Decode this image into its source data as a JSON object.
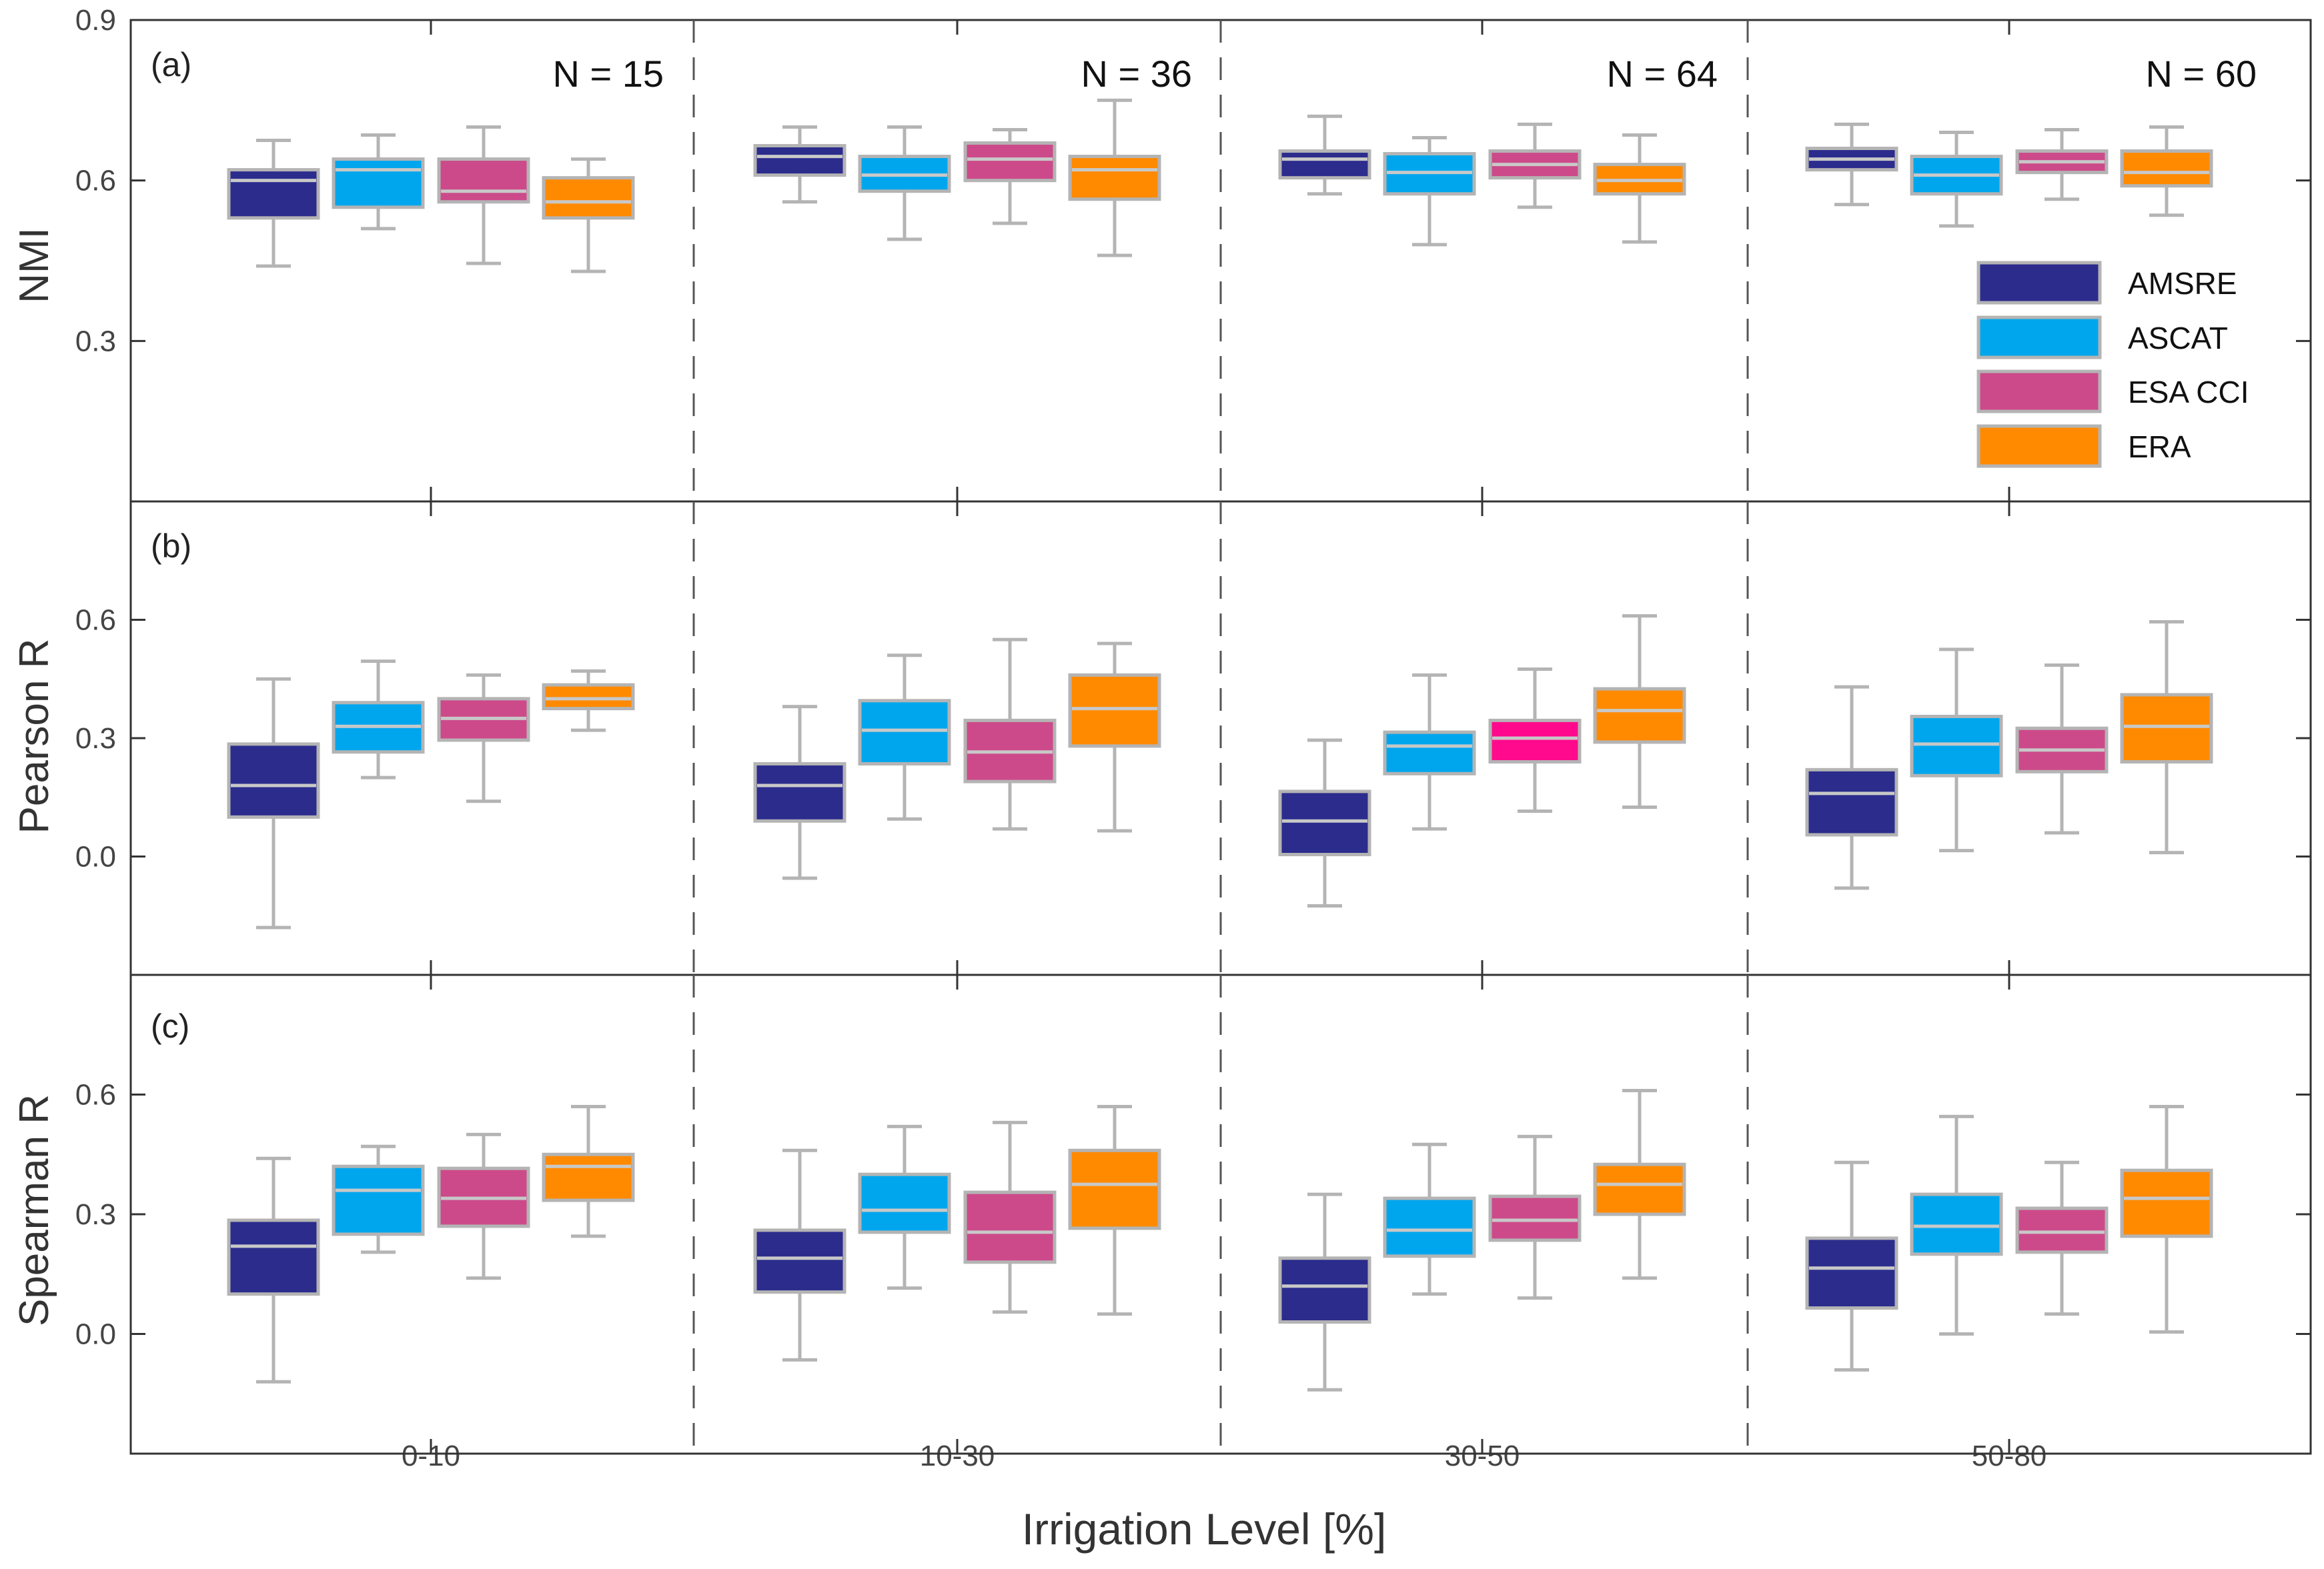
{
  "chart_data": {
    "type": "boxplot",
    "xlabel": "Irrigation Level [%]",
    "categories": [
      "0-10",
      "10-30",
      "30-50",
      "50-80"
    ],
    "group_counts": [
      "N = 15",
      "N = 36",
      "N = 64",
      "N = 60"
    ],
    "series": [
      {
        "name": "AMSRE",
        "color": "#2b2c8c"
      },
      {
        "name": "ASCAT",
        "color": "#00a6ed"
      },
      {
        "name": "ESA CCI",
        "color": "#cc4a8a"
      },
      {
        "name": "ERA",
        "color": "#ff8a00"
      }
    ],
    "whisker_color": "#b4b4b4",
    "legend_location": "right, inside panel (a)",
    "panels": [
      {
        "tag": "(a)",
        "ylabel": "NMI",
        "ylim": [
          0.0,
          0.9
        ],
        "yticks": [
          "0.3",
          "0.6",
          "0.9"
        ],
        "boxes": [
          [
            {
              "min": 0.44,
              "q1": 0.53,
              "median": 0.6,
              "q3": 0.62,
              "max": 0.675
            },
            {
              "min": 0.51,
              "q1": 0.55,
              "median": 0.62,
              "q3": 0.64,
              "max": 0.685
            },
            {
              "min": 0.445,
              "q1": 0.56,
              "median": 0.58,
              "q3": 0.64,
              "max": 0.7
            },
            {
              "min": 0.43,
              "q1": 0.53,
              "median": 0.56,
              "q3": 0.605,
              "max": 0.64
            }
          ],
          [
            {
              "min": 0.56,
              "q1": 0.61,
              "median": 0.645,
              "q3": 0.665,
              "max": 0.7
            },
            {
              "min": 0.49,
              "q1": 0.58,
              "median": 0.61,
              "q3": 0.645,
              "max": 0.7
            },
            {
              "min": 0.52,
              "q1": 0.6,
              "median": 0.64,
              "q3": 0.67,
              "max": 0.695
            },
            {
              "min": 0.46,
              "q1": 0.565,
              "median": 0.62,
              "q3": 0.645,
              "max": 0.75
            }
          ],
          [
            {
              "min": 0.575,
              "q1": 0.605,
              "median": 0.64,
              "q3": 0.655,
              "max": 0.72
            },
            {
              "min": 0.48,
              "q1": 0.575,
              "median": 0.615,
              "q3": 0.65,
              "max": 0.68
            },
            {
              "min": 0.55,
              "q1": 0.605,
              "median": 0.63,
              "q3": 0.655,
              "max": 0.705
            },
            {
              "min": 0.485,
              "q1": 0.575,
              "median": 0.6,
              "q3": 0.63,
              "max": 0.685
            }
          ],
          [
            {
              "min": 0.555,
              "q1": 0.62,
              "median": 0.64,
              "q3": 0.66,
              "max": 0.705
            },
            {
              "min": 0.515,
              "q1": 0.575,
              "median": 0.61,
              "q3": 0.645,
              "max": 0.69
            },
            {
              "min": 0.565,
              "q1": 0.615,
              "median": 0.635,
              "q3": 0.655,
              "max": 0.695
            },
            {
              "min": 0.535,
              "q1": 0.59,
              "median": 0.615,
              "q3": 0.655,
              "max": 0.7
            }
          ]
        ]
      },
      {
        "tag": "(b)",
        "ylabel": "Pearson R",
        "ylim": [
          -0.3,
          0.9
        ],
        "yticks": [
          "0.0",
          "0.3",
          "0.6"
        ],
        "boxes": [
          [
            {
              "min": -0.18,
              "q1": 0.1,
              "median": 0.18,
              "q3": 0.285,
              "max": 0.45
            },
            {
              "min": 0.2,
              "q1": 0.265,
              "median": 0.33,
              "q3": 0.39,
              "max": 0.495
            },
            {
              "min": 0.14,
              "q1": 0.295,
              "median": 0.35,
              "q3": 0.4,
              "max": 0.46
            },
            {
              "min": 0.32,
              "q1": 0.375,
              "median": 0.4,
              "q3": 0.435,
              "max": 0.47
            }
          ],
          [
            {
              "min": -0.055,
              "q1": 0.09,
              "median": 0.18,
              "q3": 0.235,
              "max": 0.38
            },
            {
              "min": 0.095,
              "q1": 0.235,
              "median": 0.32,
              "q3": 0.395,
              "max": 0.51
            },
            {
              "min": 0.07,
              "q1": 0.19,
              "median": 0.265,
              "q3": 0.345,
              "max": 0.55
            },
            {
              "min": 0.065,
              "q1": 0.28,
              "median": 0.375,
              "q3": 0.46,
              "max": 0.54
            }
          ],
          [
            {
              "min": -0.125,
              "q1": 0.005,
              "median": 0.09,
              "q3": 0.165,
              "max": 0.295
            },
            {
              "min": 0.07,
              "q1": 0.21,
              "median": 0.28,
              "q3": 0.315,
              "max": 0.46
            },
            {
              "min": 0.115,
              "q1": 0.24,
              "median": 0.3,
              "q3": 0.345,
              "max": 0.475
            },
            {
              "min": 0.125,
              "q1": 0.29,
              "median": 0.37,
              "q3": 0.425,
              "max": 0.61
            }
          ],
          [
            {
              "min": -0.08,
              "q1": 0.055,
              "median": 0.16,
              "q3": 0.22,
              "max": 0.43
            },
            {
              "min": 0.015,
              "q1": 0.205,
              "median": 0.285,
              "q3": 0.355,
              "max": 0.525
            },
            {
              "min": 0.06,
              "q1": 0.215,
              "median": 0.27,
              "q3": 0.325,
              "max": 0.485
            },
            {
              "min": 0.01,
              "q1": 0.24,
              "median": 0.33,
              "q3": 0.41,
              "max": 0.595
            }
          ]
        ]
      },
      {
        "tag": "(c)",
        "ylabel": "Spearman R",
        "ylim": [
          -0.3,
          0.9
        ],
        "yticks": [
          "0.0",
          "0.3",
          "0.6"
        ],
        "boxes": [
          [
            {
              "min": -0.12,
              "q1": 0.1,
              "median": 0.22,
              "q3": 0.285,
              "max": 0.44
            },
            {
              "min": 0.205,
              "q1": 0.25,
              "median": 0.36,
              "q3": 0.42,
              "max": 0.47
            },
            {
              "min": 0.14,
              "q1": 0.27,
              "median": 0.34,
              "q3": 0.415,
              "max": 0.5
            },
            {
              "min": 0.245,
              "q1": 0.335,
              "median": 0.42,
              "q3": 0.45,
              "max": 0.57
            }
          ],
          [
            {
              "min": -0.065,
              "q1": 0.105,
              "median": 0.19,
              "q3": 0.26,
              "max": 0.46
            },
            {
              "min": 0.115,
              "q1": 0.255,
              "median": 0.31,
              "q3": 0.4,
              "max": 0.52
            },
            {
              "min": 0.055,
              "q1": 0.18,
              "median": 0.255,
              "q3": 0.355,
              "max": 0.53
            },
            {
              "min": 0.05,
              "q1": 0.265,
              "median": 0.375,
              "q3": 0.46,
              "max": 0.57
            }
          ],
          [
            {
              "min": -0.14,
              "q1": 0.03,
              "median": 0.12,
              "q3": 0.19,
              "max": 0.35
            },
            {
              "min": 0.1,
              "q1": 0.195,
              "median": 0.26,
              "q3": 0.34,
              "max": 0.475
            },
            {
              "min": 0.09,
              "q1": 0.235,
              "median": 0.285,
              "q3": 0.345,
              "max": 0.495
            },
            {
              "min": 0.14,
              "q1": 0.3,
              "median": 0.375,
              "q3": 0.425,
              "max": 0.61
            }
          ],
          [
            {
              "min": -0.09,
              "q1": 0.065,
              "median": 0.165,
              "q3": 0.24,
              "max": 0.43
            },
            {
              "min": 0.0,
              "q1": 0.2,
              "median": 0.27,
              "q3": 0.35,
              "max": 0.545
            },
            {
              "min": 0.05,
              "q1": 0.205,
              "median": 0.255,
              "q3": 0.315,
              "max": 0.43
            },
            {
              "min": 0.005,
              "q1": 0.245,
              "median": 0.34,
              "q3": 0.41,
              "max": 0.57
            }
          ]
        ]
      }
    ]
  }
}
